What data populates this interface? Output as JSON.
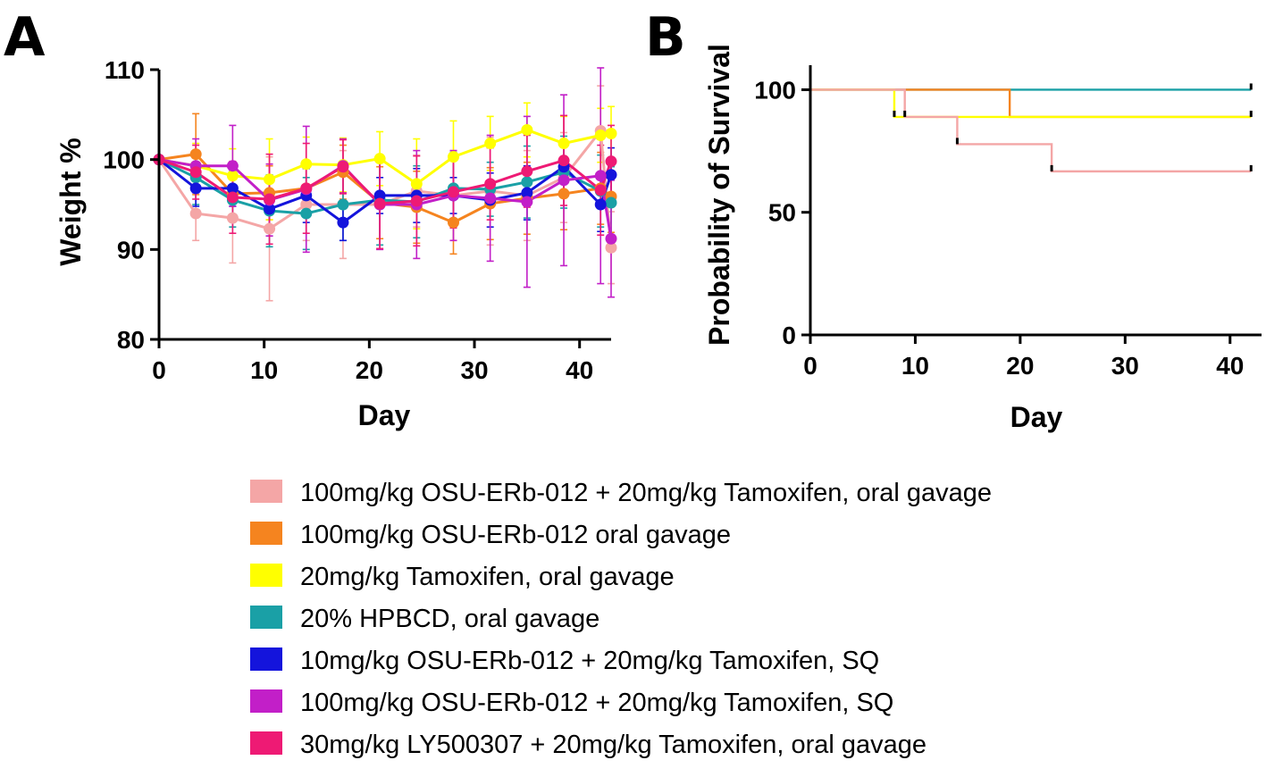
{
  "panels": {
    "a_label": "A",
    "b_label": "B"
  },
  "colors": {
    "s1": "#f4a6a6",
    "s2": "#f5841f",
    "s3": "#ffff00",
    "s4": "#1aa0a6",
    "s5": "#1414dc",
    "s6": "#c21fc8",
    "s7": "#ee1a74"
  },
  "chart_data": [
    {
      "panel": "A",
      "type": "line",
      "xlabel": "Day",
      "ylabel": "Weight %",
      "xlim": [
        0,
        43
      ],
      "ylim": [
        80,
        110
      ],
      "xticks": [
        "0",
        "10",
        "20",
        "30",
        "40"
      ],
      "yticks": [
        "80",
        "90",
        "100",
        "110"
      ],
      "x": [
        0,
        3.5,
        7,
        10.5,
        14,
        17.5,
        21,
        24.5,
        28,
        31.5,
        35,
        38.5,
        42,
        43
      ],
      "series": [
        {
          "name": "100mg/kg OSU-ERb-012 + 20mg/kg Tamoxifen, oral gavage",
          "color": "#f4a6a6",
          "values": [
            100,
            94,
            93.5,
            92.3,
            95,
            95,
            95,
            96.5,
            96,
            96.5,
            96,
            98,
            103.2,
            90.2
          ],
          "errors": [
            0,
            3,
            5,
            8,
            4,
            6,
            5,
            4,
            5,
            6,
            5,
            5,
            5,
            4
          ]
        },
        {
          "name": "100mg/kg OSU-ERb-012 oral gavage",
          "color": "#f5841f",
          "values": [
            100,
            100.6,
            96.2,
            96.3,
            96.8,
            98.6,
            95.2,
            94.7,
            93,
            95.1,
            95.7,
            96.2,
            96.8,
            95.9
          ],
          "errors": [
            0,
            4.5,
            3,
            3,
            3,
            3,
            4,
            4,
            3.5,
            4,
            4,
            4,
            4,
            4
          ]
        },
        {
          "name": "20mg/kg Tamoxifen, oral gavage",
          "color": "#ffff00",
          "values": [
            100,
            99.3,
            98.2,
            97.8,
            99.5,
            99.4,
            100.1,
            97.3,
            100.3,
            101.8,
            103.3,
            101.8,
            102.7,
            102.9
          ],
          "errors": [
            0,
            2.5,
            3,
            4.5,
            3,
            3,
            3,
            5,
            4,
            3,
            3,
            3,
            3,
            3
          ]
        },
        {
          "name": "20% HPBCD, oral gavage",
          "color": "#1aa0a6",
          "values": [
            100,
            98,
            95.5,
            94.3,
            94,
            95,
            95.5,
            95.3,
            96.8,
            96.7,
            97.5,
            98.6,
            96.5,
            95.2
          ],
          "errors": [
            0,
            3,
            3,
            4,
            4,
            4,
            5,
            4,
            4,
            3,
            4,
            4,
            4,
            4
          ]
        },
        {
          "name": "10mg/kg OSU-ERb-012 + 20mg/kg Tamoxifen, SQ",
          "color": "#1414dc",
          "values": [
            100,
            96.8,
            96.8,
            94.5,
            96,
            93,
            96,
            96,
            96,
            95.5,
            96.3,
            99.2,
            95,
            98.3
          ],
          "errors": [
            0,
            2,
            2,
            3,
            3,
            2,
            2,
            3,
            2,
            3,
            3,
            3,
            3,
            3
          ]
        },
        {
          "name": "100mg/kg OSU-ERb-012 + 20mg/kg Tamoxifen, SQ",
          "color": "#c21fc8",
          "values": [
            100,
            99.3,
            99.3,
            95.5,
            96.7,
            99.3,
            95,
            95,
            96,
            95.7,
            95.3,
            97.7,
            98.2,
            91.2
          ],
          "errors": [
            0,
            3,
            4.5,
            4,
            7,
            3,
            5,
            6,
            5,
            7,
            9.5,
            9.5,
            12,
            6.5
          ]
        },
        {
          "name": "30mg/kg LY500307 + 20mg/kg Tamoxifen, oral gavage",
          "color": "#ee1a74",
          "values": [
            100,
            98.6,
            95.8,
            95.6,
            96.8,
            99.2,
            95.1,
            95.4,
            96.4,
            97.3,
            98.7,
            99.9,
            96.6,
            99.8
          ],
          "errors": [
            0,
            3,
            4,
            5,
            5,
            3,
            5,
            5,
            4,
            4,
            4,
            5,
            5,
            4
          ]
        }
      ]
    },
    {
      "panel": "B",
      "type": "line",
      "subtype": "survival-step",
      "xlabel": "Day",
      "ylabel": "Probability of Survival",
      "xlim": [
        0,
        43
      ],
      "ylim": [
        0,
        110
      ],
      "xticks": [
        "0",
        "10",
        "20",
        "30",
        "40"
      ],
      "yticks": [
        "0",
        "50",
        "100"
      ],
      "series": [
        {
          "name": "20% HPBCD, oral gavage",
          "color": "#1aa0a6",
          "x": [
            0,
            42
          ],
          "values": [
            100,
            100
          ],
          "censored": [
            42
          ]
        },
        {
          "name": "100mg/kg OSU-ERb-012 oral gavage",
          "color": "#f5841f",
          "x": [
            0,
            19,
            42
          ],
          "values": [
            100,
            88.9,
            88.9
          ],
          "censored": [
            42
          ]
        },
        {
          "name": "20mg/kg Tamoxifen, oral gavage",
          "color": "#ffff00",
          "x": [
            0,
            8,
            42
          ],
          "values": [
            100,
            88.9,
            88.9
          ],
          "censored": [
            8
          ]
        },
        {
          "name": "100mg/kg OSU-ERb-012 + 20mg/kg Tamoxifen, oral gavage",
          "color": "#f4a6a6",
          "x": [
            0,
            9,
            14,
            23,
            42
          ],
          "values": [
            100,
            88.9,
            77.8,
            66.7,
            66.7
          ],
          "censored": [
            9,
            14,
            23,
            42
          ]
        }
      ]
    }
  ],
  "legend": [
    {
      "label": "100mg/kg OSU-ERb-012 + 20mg/kg Tamoxifen, oral gavage",
      "color": "#f4a6a6"
    },
    {
      "label": "100mg/kg OSU-ERb-012 oral gavage",
      "color": "#f5841f"
    },
    {
      "label": "20mg/kg Tamoxifen, oral gavage",
      "color": "#ffff00"
    },
    {
      "label": "20% HPBCD, oral gavage",
      "color": "#1aa0a6"
    },
    {
      "label": "10mg/kg OSU-ERb-012 + 20mg/kg Tamoxifen, SQ",
      "color": "#1414dc"
    },
    {
      "label": "100mg/kg OSU-ERb-012 + 20mg/kg Tamoxifen, SQ",
      "color": "#c21fc8"
    },
    {
      "label": "30mg/kg LY500307 + 20mg/kg Tamoxifen, oral gavage",
      "color": "#ee1a74"
    }
  ]
}
